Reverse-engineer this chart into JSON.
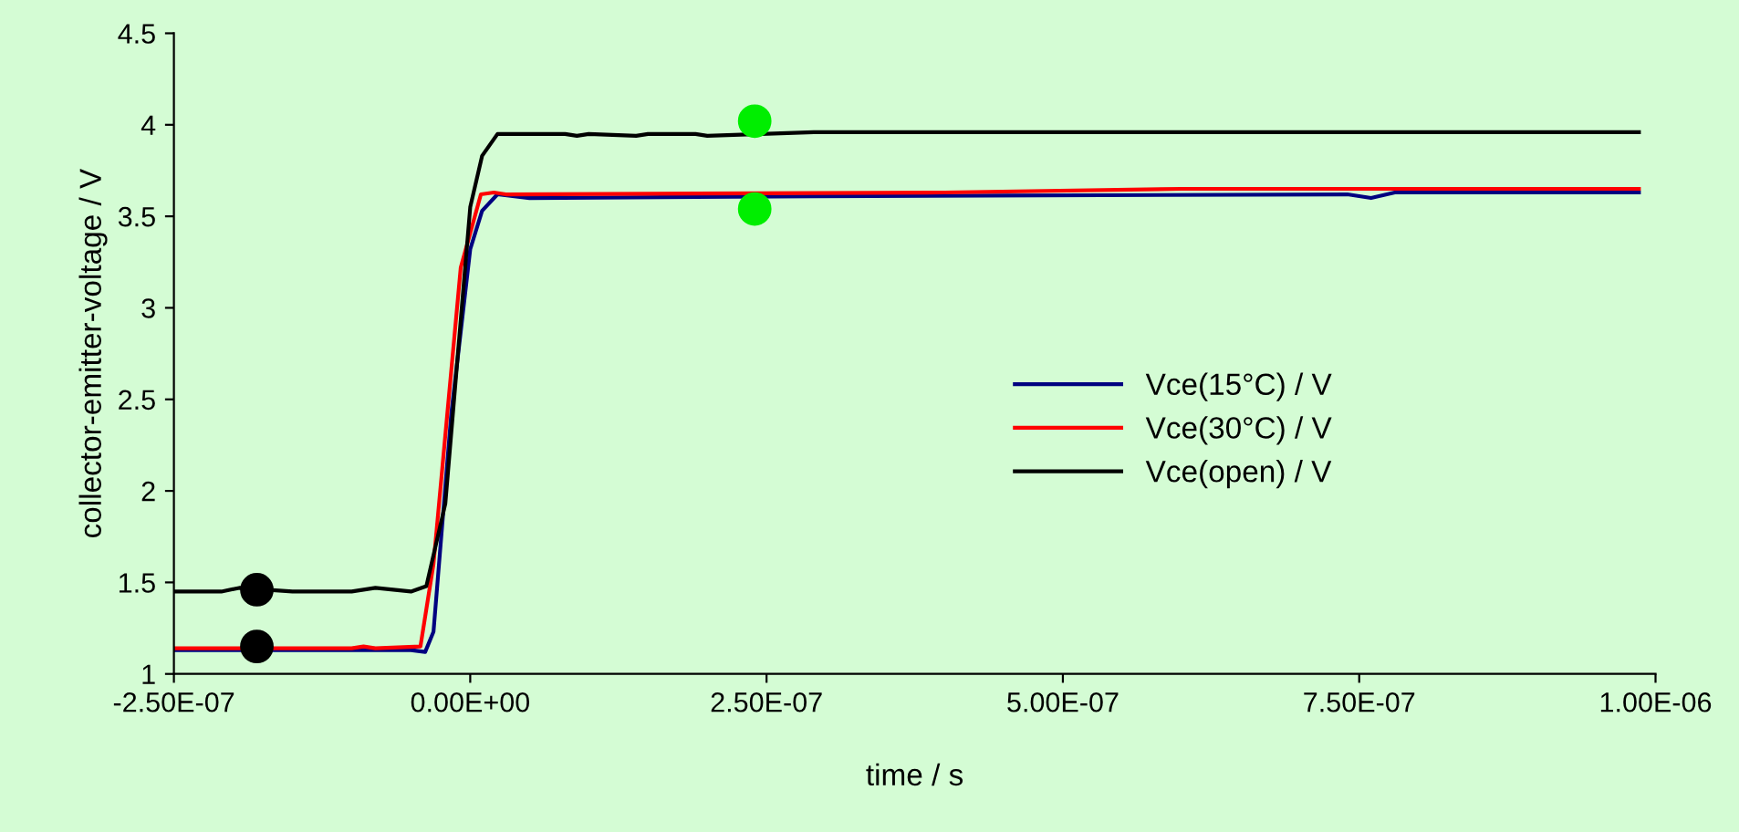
{
  "chart_data": {
    "type": "line",
    "xlabel": "time / s",
    "ylabel": "collector-emitter-voltage / V",
    "xlim": [
      -2.5e-07,
      1e-06
    ],
    "ylim": [
      1,
      4.5
    ],
    "xticks": [
      {
        "value": -2.5e-07,
        "label": "-2.50E-07"
      },
      {
        "value": 0,
        "label": "0.00E+00"
      },
      {
        "value": 2.5e-07,
        "label": "2.50E-07"
      },
      {
        "value": 5e-07,
        "label": "5.00E-07"
      },
      {
        "value": 7.5e-07,
        "label": "7.50E-07"
      },
      {
        "value": 1e-06,
        "label": "1.00E-06"
      }
    ],
    "yticks": [
      1,
      1.5,
      2,
      2.5,
      3,
      3.5,
      4,
      4.5
    ],
    "grid": false,
    "legend": "right",
    "marker": "none",
    "line_style": "solid",
    "series": [
      {
        "name": "Vce(15°C) / V",
        "color": "#000080",
        "x": [
          -2.5e-07,
          -1e-07,
          -5e-08,
          -3.8e-08,
          -3.1e-08,
          -1.6e-08,
          0,
          1e-08,
          2.3e-08,
          5e-08,
          2.9e-07,
          7.4e-07,
          7.6e-07,
          7.8e-07,
          9.86e-07
        ],
        "values": [
          1.13,
          1.13,
          1.13,
          1.12,
          1.23,
          2.42,
          3.32,
          3.53,
          3.62,
          3.6,
          3.61,
          3.62,
          3.6,
          3.63,
          3.63
        ]
      },
      {
        "name": "Vce(30°C) / V",
        "color": "#ff0000",
        "x": [
          -2.5e-07,
          -1e-07,
          -9e-08,
          -8e-08,
          -4.2e-08,
          -3.1e-08,
          -8e-09,
          9e-09,
          2e-08,
          3e-08,
          4e-07,
          6e-07,
          9.86e-07
        ],
        "values": [
          1.14,
          1.14,
          1.15,
          1.14,
          1.15,
          1.6,
          3.22,
          3.62,
          3.63,
          3.62,
          3.63,
          3.65,
          3.65
        ]
      },
      {
        "name": "Vce(open) / V",
        "color": "#000000",
        "x": [
          -2.5e-07,
          -2.1e-07,
          -1.95e-07,
          -1.5e-07,
          -1e-07,
          -8e-08,
          -5e-08,
          -3.7e-08,
          -2.1e-08,
          0,
          1e-08,
          2.3e-08,
          8e-08,
          9e-08,
          1e-07,
          1.4e-07,
          1.5e-07,
          1.9e-07,
          2e-07,
          2.9e-07,
          9.86e-07
        ],
        "values": [
          1.45,
          1.45,
          1.47,
          1.45,
          1.45,
          1.47,
          1.45,
          1.48,
          1.93,
          3.55,
          3.83,
          3.95,
          3.95,
          3.94,
          3.95,
          3.94,
          3.95,
          3.95,
          3.94,
          3.96,
          3.96
        ]
      },
      {
        "type": "scatter",
        "color": "#000000",
        "x": [
          -1.8e-07,
          -1.8e-07
        ],
        "values": [
          1.46,
          1.15
        ],
        "marker": "circle"
      },
      {
        "type": "scatter",
        "color": "#00ee00",
        "x": [
          2.4e-07,
          2.4e-07
        ],
        "values": [
          4.02,
          3.54
        ],
        "marker": "circle"
      }
    ]
  }
}
